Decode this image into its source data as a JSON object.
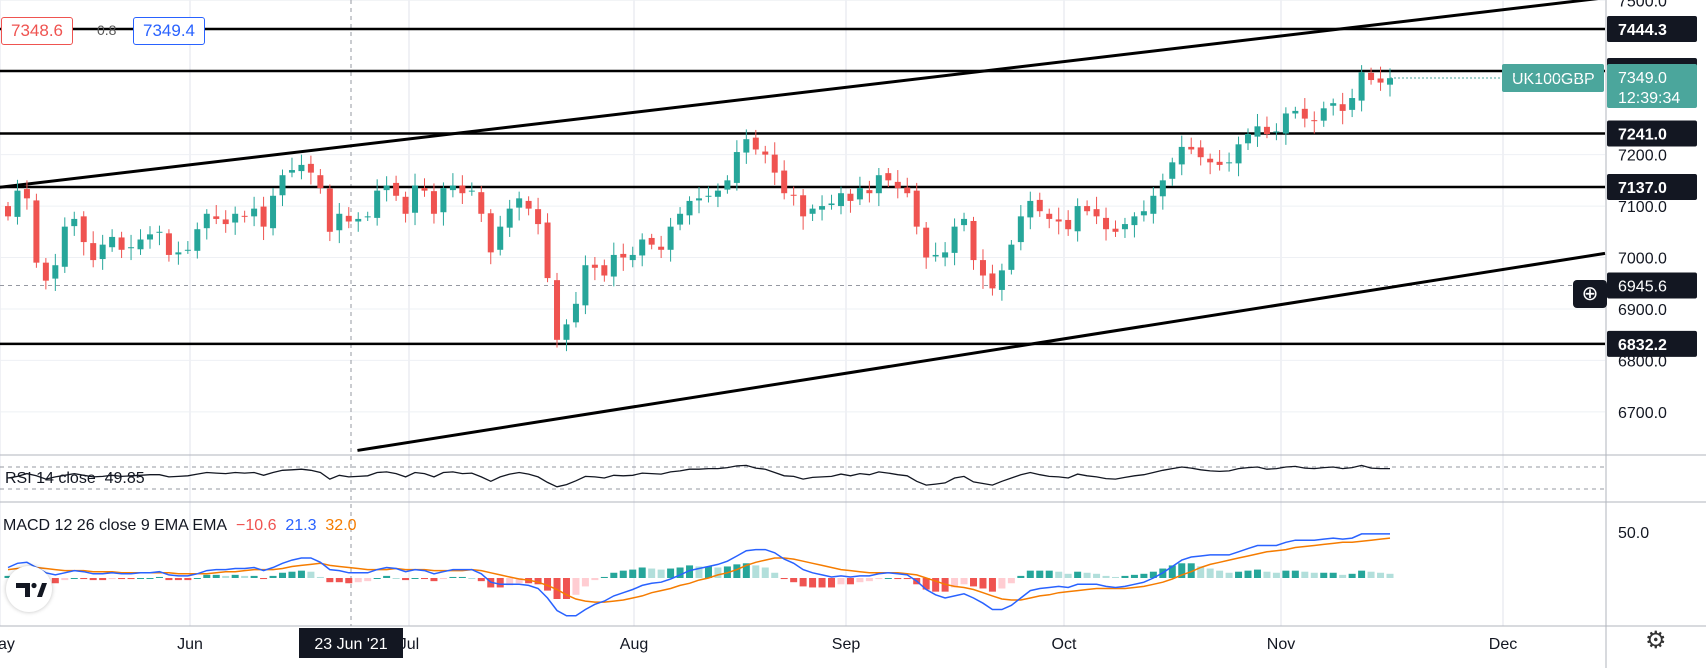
{
  "symbol": "UK100GBP",
  "ohlc_readout": {
    "bid": "7348.6",
    "spread": "0.8",
    "ask": "7349.4"
  },
  "last_price": {
    "value": "7349.0",
    "countdown": "12:39:34"
  },
  "crosshair": {
    "date_label": "23 Jun '21",
    "price_label": "6945.6"
  },
  "horizontal_levels": [
    {
      "label": "7444.3",
      "value": 7444.3
    },
    {
      "label": "7362.6",
      "value": 7362.6
    },
    {
      "label": "7241.0",
      "value": 7241.0
    },
    {
      "label": "7137.0",
      "value": 7137.0
    },
    {
      "label": "6832.2",
      "value": 6832.2
    }
  ],
  "rsi": {
    "label": "RSI 14 close",
    "value": "49.85"
  },
  "macd": {
    "label": "MACD 12 26 close 9 EMA EMA",
    "hist": "−10.6",
    "macd": "21.3",
    "signal": "32.0",
    "axis_tick": "50.0"
  },
  "colors": {
    "up": "#26a69a",
    "down": "#ef5350",
    "macd_line": "#2962ff",
    "signal_line": "#f57c00",
    "label_bg": "#131722",
    "symbol_bg": "#4ba69c"
  },
  "icons": {
    "logo": "tradingview-logo-icon",
    "settings": "gear-icon",
    "add": "plus-circle-icon"
  },
  "chart_data": {
    "type": "candlestick",
    "y_range": [
      6620,
      7520
    ],
    "y_ticks": [
      "7500.0",
      "7200.0",
      "7100.0",
      "7000.0",
      "6900.0",
      "6800.0",
      "6700.0"
    ],
    "x_labels": [
      "ay",
      "Jun",
      "Jul",
      "Aug",
      "Sep",
      "Oct",
      "Nov",
      "Dec"
    ],
    "x_range": [
      "2021-04-27",
      "2021-12-12"
    ],
    "trendlines": [
      {
        "name": "upper channel",
        "from": [
          "2021-04-26",
          7135
        ],
        "to": [
          "2021-12-12",
          7505
        ]
      },
      {
        "name": "lower channel",
        "from": [
          "2021-06-17",
          6625
        ],
        "to": [
          "2021-12-12",
          7008
        ]
      }
    ],
    "closes": [
      7080,
      7130,
      7115,
      6990,
      6955,
      6985,
      7060,
      7075,
      7030,
      6995,
      7025,
      7040,
      7015,
      7020,
      7035,
      7045,
      7050,
      7005,
      7010,
      7015,
      7055,
      7085,
      7075,
      7065,
      7085,
      7080,
      7095,
      7060,
      7120,
      7160,
      7170,
      7180,
      7165,
      7135,
      7050,
      7085,
      7070,
      7075,
      7080,
      7130,
      7140,
      7120,
      7085,
      7140,
      7130,
      7085,
      7135,
      7140,
      7125,
      7130,
      7085,
      7010,
      7060,
      7095,
      7115,
      7095,
      7065,
      6960,
      6840,
      6870,
      6910,
      6985,
      6980,
      6965,
      7005,
      7000,
      7005,
      7035,
      7025,
      7015,
      7060,
      7085,
      7110,
      7115,
      7120,
      7130,
      7150,
      7205,
      7230,
      7210,
      7200,
      7165,
      7125,
      7120,
      7080,
      7095,
      7100,
      7105,
      7125,
      7110,
      7135,
      7125,
      7160,
      7150,
      7135,
      7125,
      7060,
      7000,
      7005,
      7010,
      7060,
      7075,
      6995,
      6965,
      6940,
      6975,
      7025,
      7080,
      7110,
      7090,
      7075,
      7070,
      7055,
      7100,
      7090,
      7080,
      7055,
      7050,
      7065,
      7080,
      7090,
      7120,
      7150,
      7185,
      7215,
      7210,
      7195,
      7185,
      7180,
      7185,
      7220,
      7240,
      7255,
      7240,
      7245,
      7280,
      7285,
      7270,
      7265,
      7290,
      7300,
      7285,
      7310,
      7360,
      7345,
      7340,
      7348.6
    ],
    "rsi_series": [
      50,
      53,
      58,
      54,
      48,
      52,
      55,
      58,
      55,
      52,
      53,
      55,
      53,
      54,
      55,
      56,
      56,
      52,
      53,
      54,
      57,
      60,
      59,
      58,
      60,
      59,
      60,
      55,
      60,
      64,
      65,
      66,
      64,
      60,
      48,
      55,
      52,
      53,
      54,
      60,
      61,
      58,
      52,
      60,
      58,
      52,
      60,
      61,
      58,
      59,
      52,
      44,
      52,
      57,
      60,
      57,
      52,
      42,
      34,
      38,
      45,
      53,
      52,
      50,
      55,
      54,
      55,
      59,
      58,
      57,
      61,
      63,
      66,
      66,
      67,
      67,
      69,
      72,
      73,
      68,
      66,
      60,
      54,
      53,
      48,
      51,
      52,
      53,
      57,
      54,
      58,
      56,
      61,
      59,
      56,
      54,
      44,
      37,
      39,
      41,
      50,
      53,
      43,
      40,
      37,
      44,
      50,
      56,
      60,
      56,
      53,
      52,
      50,
      57,
      54,
      52,
      49,
      48,
      51,
      54,
      56,
      60,
      64,
      67,
      70,
      68,
      65,
      63,
      62,
      63,
      67,
      69,
      70,
      66,
      67,
      70,
      71,
      68,
      67,
      69,
      70,
      67,
      69,
      73,
      68,
      67,
      67
    ],
    "macd_series": [
      10,
      14,
      15,
      10,
      5,
      3,
      5,
      7,
      6,
      4,
      4,
      5,
      4,
      4,
      5,
      5,
      6,
      3,
      2,
      2,
      4,
      7,
      8,
      8,
      9,
      9,
      10,
      7,
      10,
      14,
      17,
      19,
      19,
      15,
      8,
      7,
      5,
      5,
      5,
      8,
      10,
      9,
      6,
      8,
      7,
      4,
      6,
      8,
      8,
      8,
      4,
      -4,
      -6,
      -6,
      -6,
      -7,
      -10,
      -19,
      -31,
      -36,
      -36,
      -30,
      -25,
      -22,
      -17,
      -14,
      -11,
      -7,
      -5,
      -4,
      -1,
      3,
      7,
      9,
      11,
      13,
      16,
      21,
      26,
      27,
      27,
      24,
      18,
      14,
      8,
      5,
      3,
      1,
      2,
      1,
      2,
      2,
      4,
      5,
      4,
      3,
      -3,
      -11,
      -16,
      -19,
      -17,
      -15,
      -19,
      -24,
      -30,
      -30,
      -26,
      -19,
      -12,
      -10,
      -9,
      -8,
      -9,
      -6,
      -6,
      -6,
      -8,
      -9,
      -8,
      -6,
      -4,
      0,
      5,
      11,
      17,
      20,
      21,
      22,
      22,
      22,
      25,
      28,
      31,
      31,
      31,
      34,
      36,
      36,
      36,
      37,
      38,
      37,
      38,
      42,
      42,
      42,
      42
    ],
    "signal_series": [
      8,
      9,
      10,
      10,
      9,
      8,
      7,
      7,
      7,
      6,
      6,
      6,
      5,
      5,
      5,
      5,
      5,
      5,
      4,
      4,
      4,
      4,
      5,
      6,
      6,
      7,
      8,
      8,
      8,
      9,
      11,
      12,
      13,
      14,
      12,
      11,
      10,
      9,
      8,
      8,
      8,
      9,
      8,
      8,
      8,
      7,
      7,
      7,
      7,
      8,
      7,
      5,
      3,
      1,
      -1,
      -2,
      -4,
      -7,
      -11,
      -16,
      -20,
      -22,
      -23,
      -23,
      -22,
      -21,
      -19,
      -17,
      -14,
      -12,
      -10,
      -7,
      -5,
      -2,
      0,
      3,
      5,
      8,
      12,
      15,
      17,
      19,
      19,
      18,
      16,
      14,
      12,
      10,
      8,
      7,
      6,
      5,
      5,
      5,
      5,
      4,
      3,
      0,
      -3,
      -6,
      -8,
      -9,
      -11,
      -14,
      -17,
      -20,
      -21,
      -21,
      -19,
      -17,
      -16,
      -14,
      -13,
      -12,
      -11,
      -10,
      -10,
      -10,
      -10,
      -9,
      -8,
      -6,
      -4,
      -1,
      3,
      6,
      10,
      13,
      15,
      17,
      19,
      21,
      23,
      25,
      26,
      27,
      29,
      30,
      31,
      32,
      33,
      34,
      34,
      35,
      36,
      37,
      38
    ]
  }
}
